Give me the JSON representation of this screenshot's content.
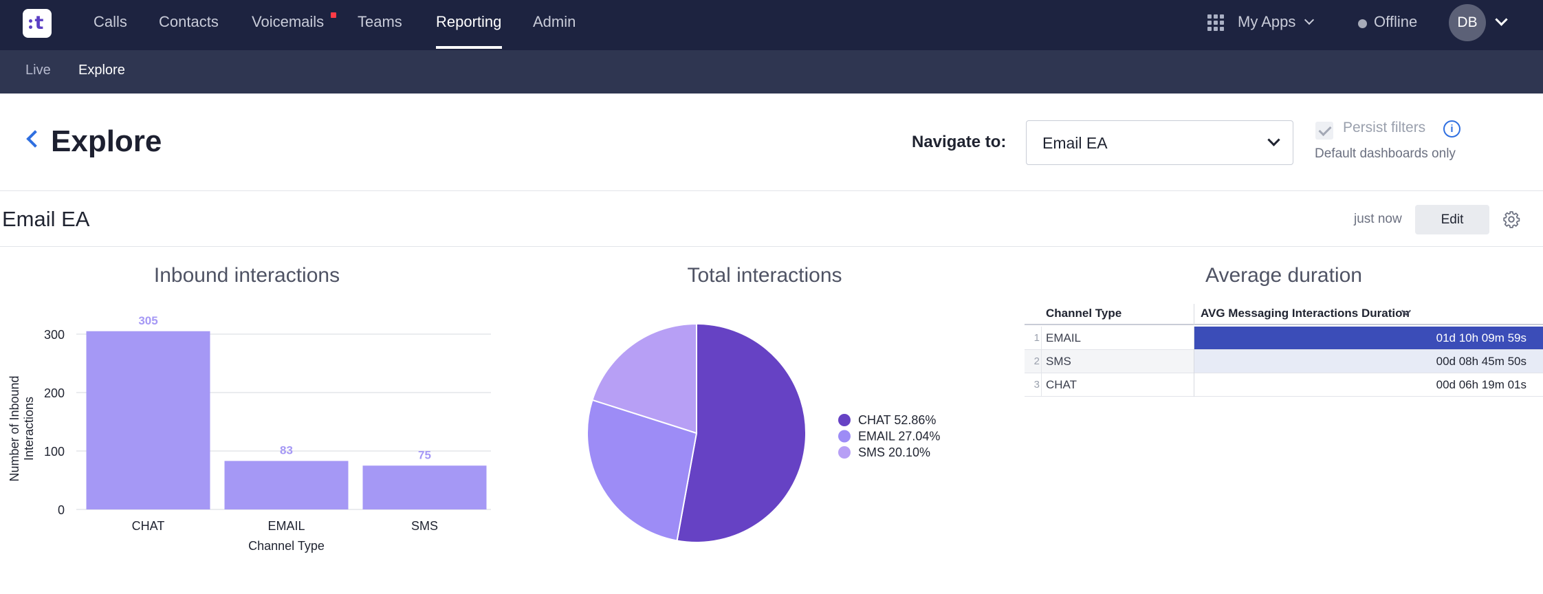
{
  "topnav": {
    "items": [
      {
        "label": "Calls"
      },
      {
        "label": "Contacts"
      },
      {
        "label": "Voicemails"
      },
      {
        "label": "Teams"
      },
      {
        "label": "Reporting",
        "active": true
      },
      {
        "label": "Admin"
      }
    ],
    "apps_label": "My Apps",
    "status_label": "Offline",
    "avatar_initials": "DB"
  },
  "subnav": {
    "items": [
      {
        "label": "Live"
      },
      {
        "label": "Explore",
        "active": true
      }
    ]
  },
  "header": {
    "title": "Explore",
    "navigate_label": "Navigate to:",
    "navigate_value": "Email EA",
    "persist_label": "Persist filters",
    "persist_sub": "Default dashboards only"
  },
  "dashboard": {
    "title": "Email EA",
    "updated": "just now",
    "edit_label": "Edit"
  },
  "tiles": {
    "bar_title": "Inbound interactions",
    "pie_title": "Total interactions",
    "table_title": "Average duration"
  },
  "colors": {
    "nav_bg": "#1d2340",
    "subnav_bg": "#2f3651",
    "bar": "#a598f5",
    "pie_chat": "#6642c4",
    "pie_email": "#9d8cf6",
    "pie_sms": "#b79ff5",
    "table_highlight": "#3b4db8"
  },
  "chart_data": [
    {
      "type": "bar",
      "title": "Inbound interactions",
      "categories": [
        "CHAT",
        "EMAIL",
        "SMS"
      ],
      "values": [
        305,
        83,
        75
      ],
      "xlabel": "Channel Type",
      "ylabel": "Number of Inbound Interactions",
      "ylim": [
        0,
        300
      ],
      "yticks": [
        0,
        100,
        200,
        300
      ],
      "grid": true
    },
    {
      "type": "pie",
      "title": "Total interactions",
      "slices": [
        {
          "label": "CHAT",
          "value": 52.86,
          "legend": "CHAT 52.86%"
        },
        {
          "label": "EMAIL",
          "value": 27.04,
          "legend": "EMAIL 27.04%"
        },
        {
          "label": "SMS",
          "value": 20.1,
          "legend": "SMS 20.10%"
        }
      ],
      "legend_position": "right"
    },
    {
      "type": "table",
      "title": "Average duration",
      "columns": [
        "Channel Type",
        "AVG Messaging Interactions Duration"
      ],
      "rows": [
        {
          "n": "1",
          "channel": "EMAIL",
          "duration": "01d 10h 09m 59s"
        },
        {
          "n": "2",
          "channel": "SMS",
          "duration": "00d 08h 45m 50s"
        },
        {
          "n": "3",
          "channel": "CHAT",
          "duration": "00d 06h 19m 01s"
        }
      ]
    }
  ]
}
